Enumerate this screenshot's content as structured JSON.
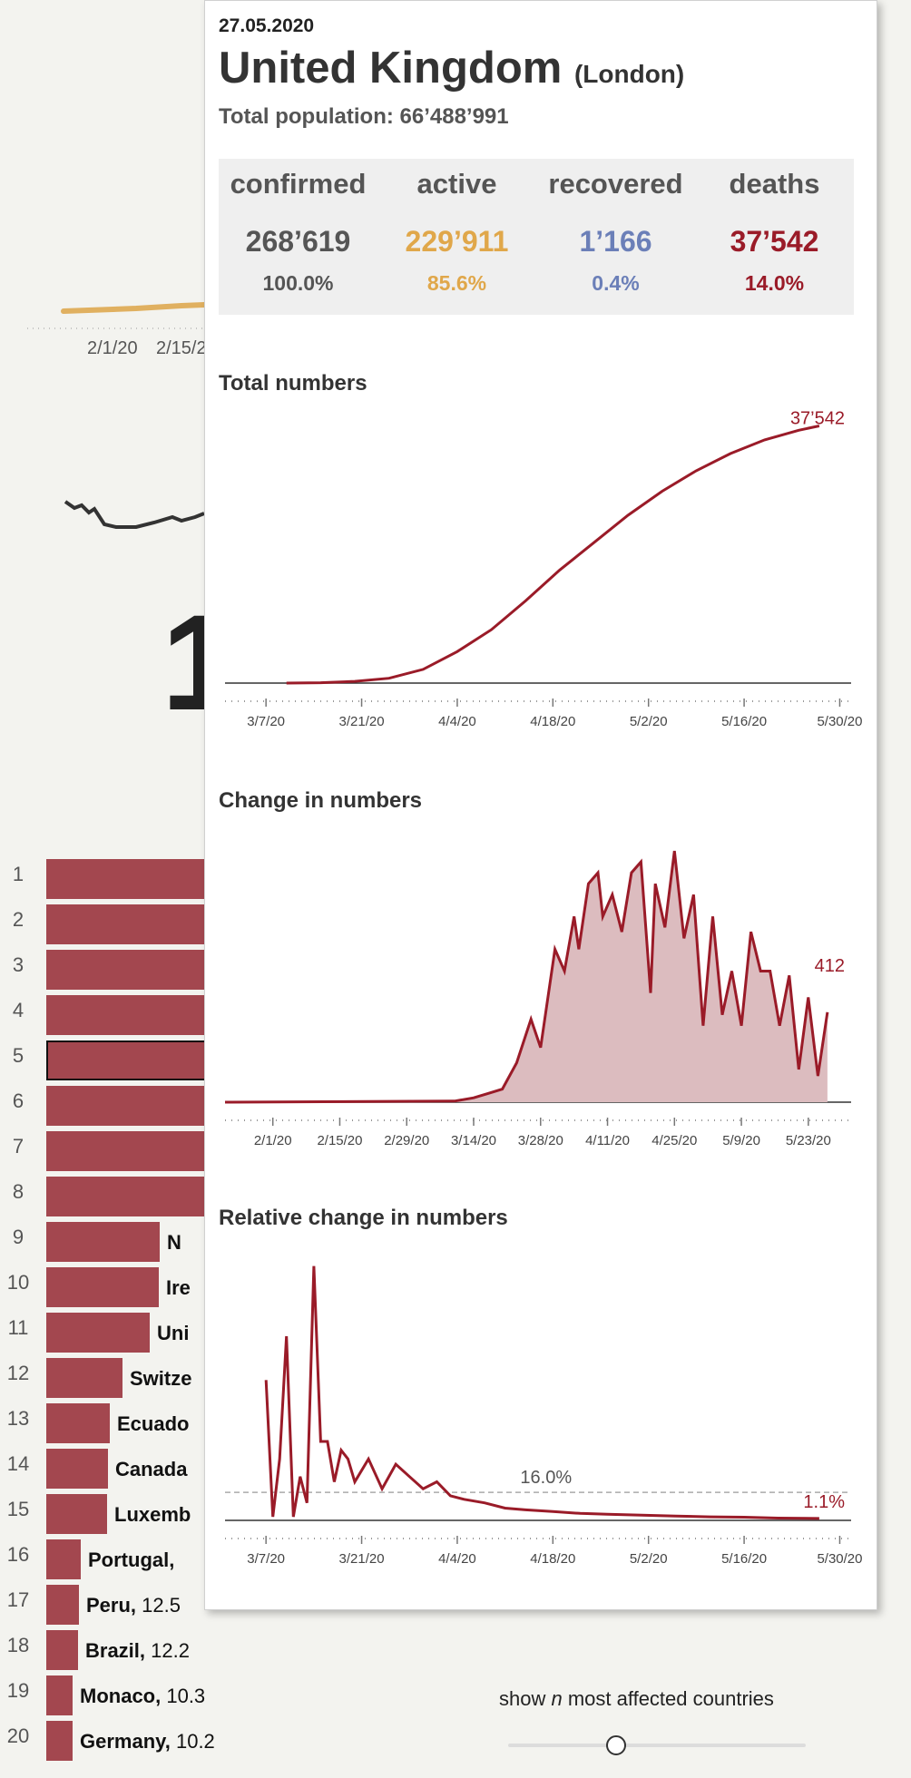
{
  "background": {
    "axis_tick_labels": [
      "2/1/20",
      "2/15/2"
    ],
    "big_number": "1",
    "ranking": [
      {
        "rank": "1",
        "name": "",
        "value": "",
        "width_frac": 1.0
      },
      {
        "rank": "2",
        "name": "",
        "value": "",
        "width_frac": 1.0
      },
      {
        "rank": "3",
        "name": "",
        "value": "",
        "width_frac": 1.0
      },
      {
        "rank": "4",
        "name": "",
        "value": "",
        "width_frac": 1.0
      },
      {
        "rank": "5",
        "name": "",
        "value": "",
        "width_frac": 1.0,
        "selected": true
      },
      {
        "rank": "6",
        "name": "",
        "value": "",
        "width_frac": 1.0
      },
      {
        "rank": "7",
        "name": "",
        "value": "",
        "width_frac": 1.0
      },
      {
        "rank": "8",
        "name": "",
        "value": "",
        "width_frac": 1.0
      },
      {
        "rank": "9",
        "name": "N",
        "value": "",
        "width_frac": 0.66
      },
      {
        "rank": "10",
        "name": "Ire",
        "value": "",
        "width_frac": 0.65
      },
      {
        "rank": "11",
        "name": "Uni",
        "value": "",
        "width_frac": 0.6
      },
      {
        "rank": "12",
        "name": "Switze",
        "value": "",
        "width_frac": 0.44
      },
      {
        "rank": "13",
        "name": "Ecuado",
        "value": "",
        "width_frac": 0.37
      },
      {
        "rank": "14",
        "name": "Canada",
        "value": "",
        "width_frac": 0.36
      },
      {
        "rank": "15",
        "name": "Luxemb",
        "value": "",
        "width_frac": 0.35
      },
      {
        "rank": "16",
        "name": "Portugal,",
        "value": "",
        "width_frac": 0.2
      },
      {
        "rank": "17",
        "name": "Peru,",
        "value": "12.5",
        "width_frac": 0.19
      },
      {
        "rank": "18",
        "name": "Brazil,",
        "value": "12.2",
        "width_frac": 0.185
      },
      {
        "rank": "19",
        "name": "Monaco,",
        "value": "10.3",
        "width_frac": 0.155
      },
      {
        "rank": "20",
        "name": "Germany,",
        "value": "10.2",
        "width_frac": 0.155
      }
    ],
    "slider": {
      "caption_pre": "show ",
      "caption_n": "n",
      "caption_post": " most affected countries",
      "value_frac": 0.36
    }
  },
  "popup": {
    "date": "27.05.2020",
    "country": "United Kingdom",
    "capital": "(London)",
    "population": "Total population: 66’488’991",
    "stats": [
      {
        "label": "confirmed",
        "value": "268’619",
        "pct": "100.0%",
        "color": "#555555"
      },
      {
        "label": "active",
        "value": "229’911",
        "pct": "85.6%",
        "color": "#e0a74a"
      },
      {
        "label": "recovered",
        "value": "1’166",
        "pct": "0.4%",
        "color": "#6b7fb8"
      },
      {
        "label": "deaths",
        "value": "37’542",
        "pct": "14.0%",
        "color": "#9a1b28"
      }
    ],
    "accent_color": "#9a1b28"
  },
  "chart_data": [
    {
      "type": "line",
      "title": "Total numbers",
      "x_ticks": [
        "3/7/20",
        "3/21/20",
        "4/4/20",
        "4/18/20",
        "5/2/20",
        "5/16/20",
        "5/30/20"
      ],
      "x": [
        "3/10/20",
        "3/15/20",
        "3/20/20",
        "3/25/20",
        "3/30/20",
        "4/4/20",
        "4/9/20",
        "4/14/20",
        "4/19/20",
        "4/24/20",
        "4/29/20",
        "5/4/20",
        "5/9/20",
        "5/14/20",
        "5/19/20",
        "5/24/20",
        "5/27/20"
      ],
      "series": [
        {
          "values": [
            0,
            50,
            250,
            700,
            2000,
            4600,
            7800,
            12000,
            16500,
            20500,
            24500,
            28000,
            31000,
            33500,
            35500,
            36900,
            37542
          ]
        }
      ],
      "end_label": "37’542",
      "ylim": [
        0,
        38000
      ]
    },
    {
      "type": "area",
      "title": "Change in numbers",
      "x_ticks": [
        "2/1/20",
        "2/15/20",
        "2/29/20",
        "3/14/20",
        "3/28/20",
        "4/11/20",
        "4/25/20",
        "5/9/20",
        "5/23/20"
      ],
      "x": [
        "1/22/20",
        "3/10/20",
        "3/14/20",
        "3/17/20",
        "3/20/20",
        "3/23/20",
        "3/26/20",
        "3/28/20",
        "3/31/20",
        "4/2/20",
        "4/4/20",
        "4/5/20",
        "4/7/20",
        "4/9/20",
        "4/10/20",
        "4/12/20",
        "4/14/20",
        "4/16/20",
        "4/18/20",
        "4/20/20",
        "4/21/20",
        "4/23/20",
        "4/25/20",
        "4/27/20",
        "4/29/20",
        "5/1/20",
        "5/3/20",
        "5/5/20",
        "5/7/20",
        "5/9/20",
        "5/11/20",
        "5/13/20",
        "5/15/20",
        "5/17/20",
        "5/19/20",
        "5/21/20",
        "5/23/20",
        "5/25/20",
        "5/27/20"
      ],
      "series": [
        {
          "values": [
            0,
            5,
            20,
            40,
            60,
            180,
            380,
            250,
            700,
            600,
            850,
            700,
            1000,
            1050,
            850,
            950,
            780,
            1050,
            1100,
            500,
            1000,
            800,
            1150,
            750,
            950,
            350,
            850,
            400,
            600,
            350,
            780,
            600,
            600,
            350,
            580,
            150,
            480,
            120,
            412
          ]
        }
      ],
      "end_label": "412",
      "ylim": [
        0,
        1200
      ]
    },
    {
      "type": "line",
      "title": "Relative change in numbers",
      "x_ticks": [
        "3/7/20",
        "3/21/20",
        "4/4/20",
        "4/18/20",
        "5/2/20",
        "5/16/20",
        "5/30/20"
      ],
      "x": [
        "3/7/20",
        "3/8/20",
        "3/9/20",
        "3/10/20",
        "3/11/20",
        "3/12/20",
        "3/13/20",
        "3/14/20",
        "3/15/20",
        "3/16/20",
        "3/17/20",
        "3/18/20",
        "3/19/20",
        "3/20/20",
        "3/22/20",
        "3/24/20",
        "3/26/20",
        "3/28/20",
        "3/30/20",
        "4/1/20",
        "4/3/20",
        "4/5/20",
        "4/8/20",
        "4/11/20",
        "4/14/20",
        "4/18/20",
        "4/22/20",
        "4/26/20",
        "5/1/20",
        "5/6/20",
        "5/11/20",
        "5/16/20",
        "5/21/20",
        "5/27/20"
      ],
      "series": [
        {
          "values": [
            80,
            2,
            35,
            105,
            2,
            25,
            10,
            145,
            45,
            45,
            22,
            40,
            35,
            22,
            35,
            18,
            32,
            25,
            18,
            22,
            14,
            12,
            10,
            7,
            6,
            5,
            4,
            3.5,
            3,
            2.5,
            2,
            1.8,
            1.3,
            1.1
          ]
        }
      ],
      "reference_value": 16.0,
      "reference_label": "16.0%",
      "end_label": "1.1%",
      "ylim": [
        0,
        150
      ]
    }
  ]
}
